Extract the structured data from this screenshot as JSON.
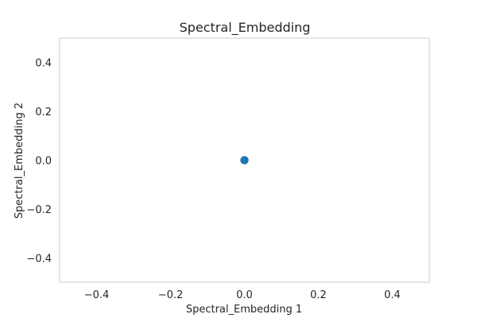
{
  "chart_data": {
    "type": "scatter",
    "title": "Spectral_Embedding",
    "xlabel": "Spectral_Embedding 1",
    "ylabel": "Spectral_Embedding 2",
    "xlim": [
      -0.5,
      0.5
    ],
    "ylim": [
      -0.5,
      0.5
    ],
    "xticks": [
      -0.4,
      -0.2,
      0.0,
      0.2,
      0.4
    ],
    "yticks": [
      -0.4,
      -0.2,
      0.0,
      0.2,
      0.4
    ],
    "xtick_labels": [
      "−0.4",
      "−0.2",
      "0.0",
      "0.2",
      "0.4"
    ],
    "ytick_labels": [
      "−0.4",
      "−0.2",
      "0.0",
      "0.2",
      "0.4"
    ],
    "grid": false,
    "points": [
      {
        "x": 0.0,
        "y": 0.0
      },
      {
        "x": 0.0005,
        "y": 0.0003
      },
      {
        "x": -0.0004,
        "y": -0.0002
      },
      {
        "x": 0.0002,
        "y": -0.0005
      },
      {
        "x": -0.0003,
        "y": 0.0004
      }
    ],
    "marker_color": "#1f77b4",
    "axes_edge_color": "#cccccc"
  }
}
